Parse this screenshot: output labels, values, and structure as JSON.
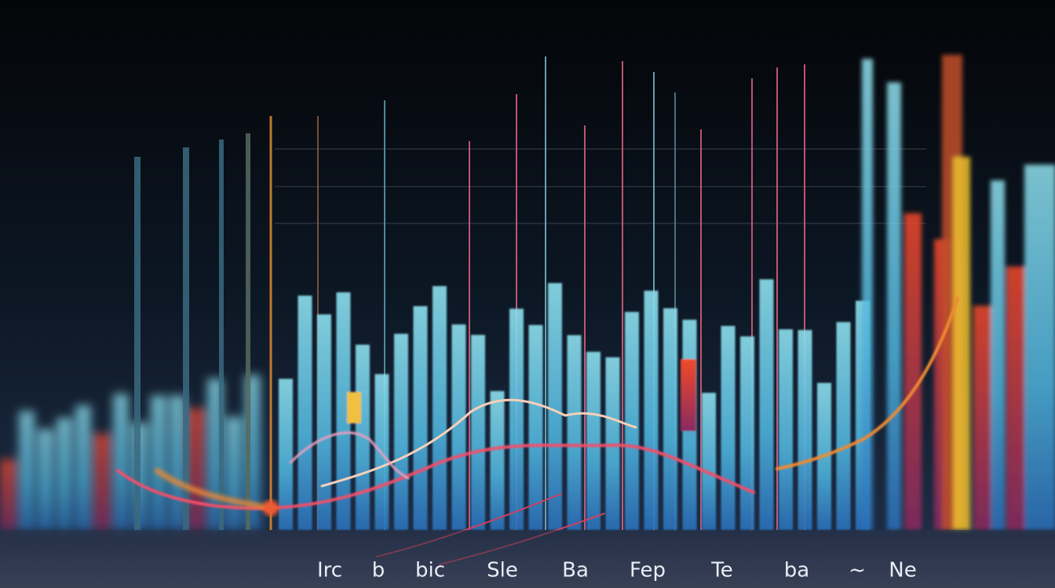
{
  "bottom_labels": [
    "Irc",
    "b",
    "bic",
    "Sle",
    "Ba",
    "Fep",
    "Te",
    "ba",
    "~",
    "Ne"
  ]
}
